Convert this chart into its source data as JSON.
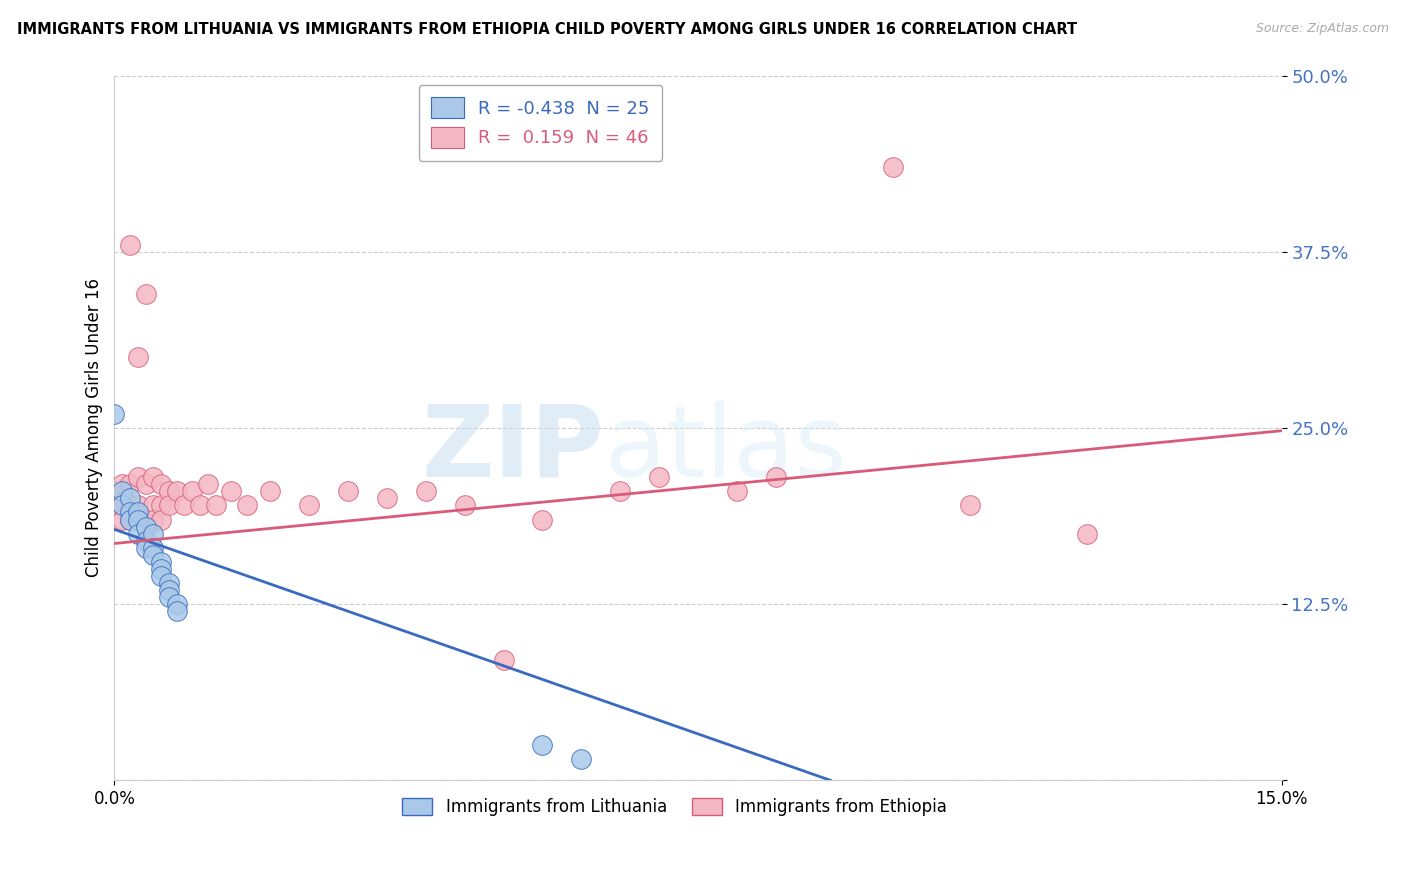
{
  "title": "IMMIGRANTS FROM LITHUANIA VS IMMIGRANTS FROM ETHIOPIA CHILD POVERTY AMONG GIRLS UNDER 16 CORRELATION CHART",
  "source": "Source: ZipAtlas.com",
  "ylabel": "Child Poverty Among Girls Under 16",
  "xlim": [
    0.0,
    0.15
  ],
  "ylim": [
    0.0,
    0.5
  ],
  "yticks": [
    0.0,
    0.125,
    0.25,
    0.375,
    0.5
  ],
  "ytick_labels": [
    "",
    "12.5%",
    "25.0%",
    "37.5%",
    "50.0%"
  ],
  "R_lithuania": -0.438,
  "N_lithuania": 25,
  "R_ethiopia": 0.159,
  "N_ethiopia": 46,
  "lithuania_color": "#aac9e8",
  "ethiopia_color": "#f4b8c4",
  "line_lithuania_color": "#3a6abf",
  "line_ethiopia_color": "#d95b7a",
  "watermark_zip": "ZIP",
  "watermark_atlas": "atlas",
  "lith_line_x0": 0.0,
  "lith_line_y0": 0.178,
  "lith_line_x1": 0.092,
  "lith_line_y1": 0.0,
  "eth_line_x0": 0.0,
  "eth_line_y0": 0.168,
  "eth_line_x1": 0.15,
  "eth_line_y1": 0.248,
  "lithuania_points": [
    [
      0.0,
      0.26
    ],
    [
      0.001,
      0.205
    ],
    [
      0.001,
      0.195
    ],
    [
      0.002,
      0.2
    ],
    [
      0.002,
      0.19
    ],
    [
      0.002,
      0.185
    ],
    [
      0.003,
      0.19
    ],
    [
      0.003,
      0.185
    ],
    [
      0.003,
      0.175
    ],
    [
      0.004,
      0.18
    ],
    [
      0.004,
      0.17
    ],
    [
      0.004,
      0.165
    ],
    [
      0.005,
      0.175
    ],
    [
      0.005,
      0.165
    ],
    [
      0.005,
      0.16
    ],
    [
      0.006,
      0.155
    ],
    [
      0.006,
      0.15
    ],
    [
      0.006,
      0.145
    ],
    [
      0.007,
      0.14
    ],
    [
      0.007,
      0.135
    ],
    [
      0.007,
      0.13
    ],
    [
      0.008,
      0.125
    ],
    [
      0.008,
      0.12
    ],
    [
      0.055,
      0.025
    ],
    [
      0.06,
      0.015
    ]
  ],
  "ethiopia_points": [
    [
      0.0,
      0.205
    ],
    [
      0.0,
      0.195
    ],
    [
      0.001,
      0.21
    ],
    [
      0.001,
      0.195
    ],
    [
      0.001,
      0.185
    ],
    [
      0.002,
      0.38
    ],
    [
      0.002,
      0.21
    ],
    [
      0.002,
      0.195
    ],
    [
      0.002,
      0.185
    ],
    [
      0.003,
      0.3
    ],
    [
      0.003,
      0.215
    ],
    [
      0.003,
      0.195
    ],
    [
      0.004,
      0.345
    ],
    [
      0.004,
      0.21
    ],
    [
      0.004,
      0.185
    ],
    [
      0.005,
      0.215
    ],
    [
      0.005,
      0.195
    ],
    [
      0.005,
      0.185
    ],
    [
      0.006,
      0.21
    ],
    [
      0.006,
      0.195
    ],
    [
      0.006,
      0.185
    ],
    [
      0.007,
      0.205
    ],
    [
      0.007,
      0.195
    ],
    [
      0.008,
      0.205
    ],
    [
      0.009,
      0.195
    ],
    [
      0.01,
      0.205
    ],
    [
      0.011,
      0.195
    ],
    [
      0.012,
      0.21
    ],
    [
      0.013,
      0.195
    ],
    [
      0.015,
      0.205
    ],
    [
      0.017,
      0.195
    ],
    [
      0.02,
      0.205
    ],
    [
      0.025,
      0.195
    ],
    [
      0.03,
      0.205
    ],
    [
      0.035,
      0.2
    ],
    [
      0.04,
      0.205
    ],
    [
      0.045,
      0.195
    ],
    [
      0.05,
      0.085
    ],
    [
      0.055,
      0.185
    ],
    [
      0.065,
      0.205
    ],
    [
      0.07,
      0.215
    ],
    [
      0.08,
      0.205
    ],
    [
      0.085,
      0.215
    ],
    [
      0.1,
      0.435
    ],
    [
      0.11,
      0.195
    ],
    [
      0.125,
      0.175
    ]
  ]
}
